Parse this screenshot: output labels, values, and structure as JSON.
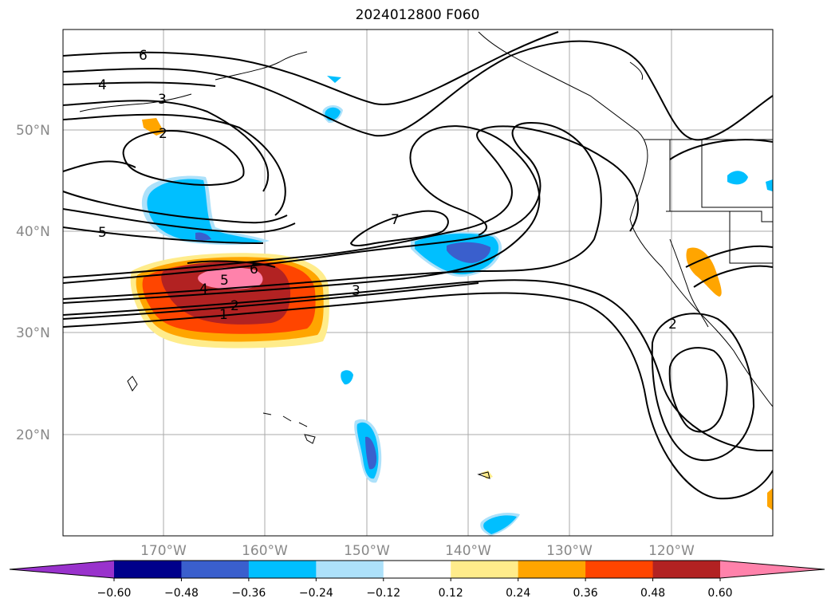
{
  "title": "2024012800 F060",
  "lat_labels": [
    "50°N",
    "40°N",
    "30°N",
    "20°N"
  ],
  "lon_labels": [
    "170°W",
    "160°W",
    "150°W",
    "140°W",
    "130°W",
    "120°W"
  ],
  "contour_labels": [
    "6",
    "4",
    "3",
    "2",
    "5",
    "7",
    "6",
    "5",
    "4",
    "2",
    "1",
    "3",
    "2"
  ],
  "colorbar": {
    "colors": [
      "#9932CC",
      "#00008B",
      "#3A5FCD",
      "#00BFFF",
      "#ADE1FA",
      "#FFFFFF",
      "#FFEC8B",
      "#FFA500",
      "#FF4500",
      "#B22222",
      "#FF82AB"
    ],
    "ticks": [
      "−0.60",
      "−0.48",
      "−0.36",
      "−0.24",
      "−0.12",
      "0.12",
      "0.24",
      "0.36",
      "0.48",
      "0.60"
    ]
  }
}
